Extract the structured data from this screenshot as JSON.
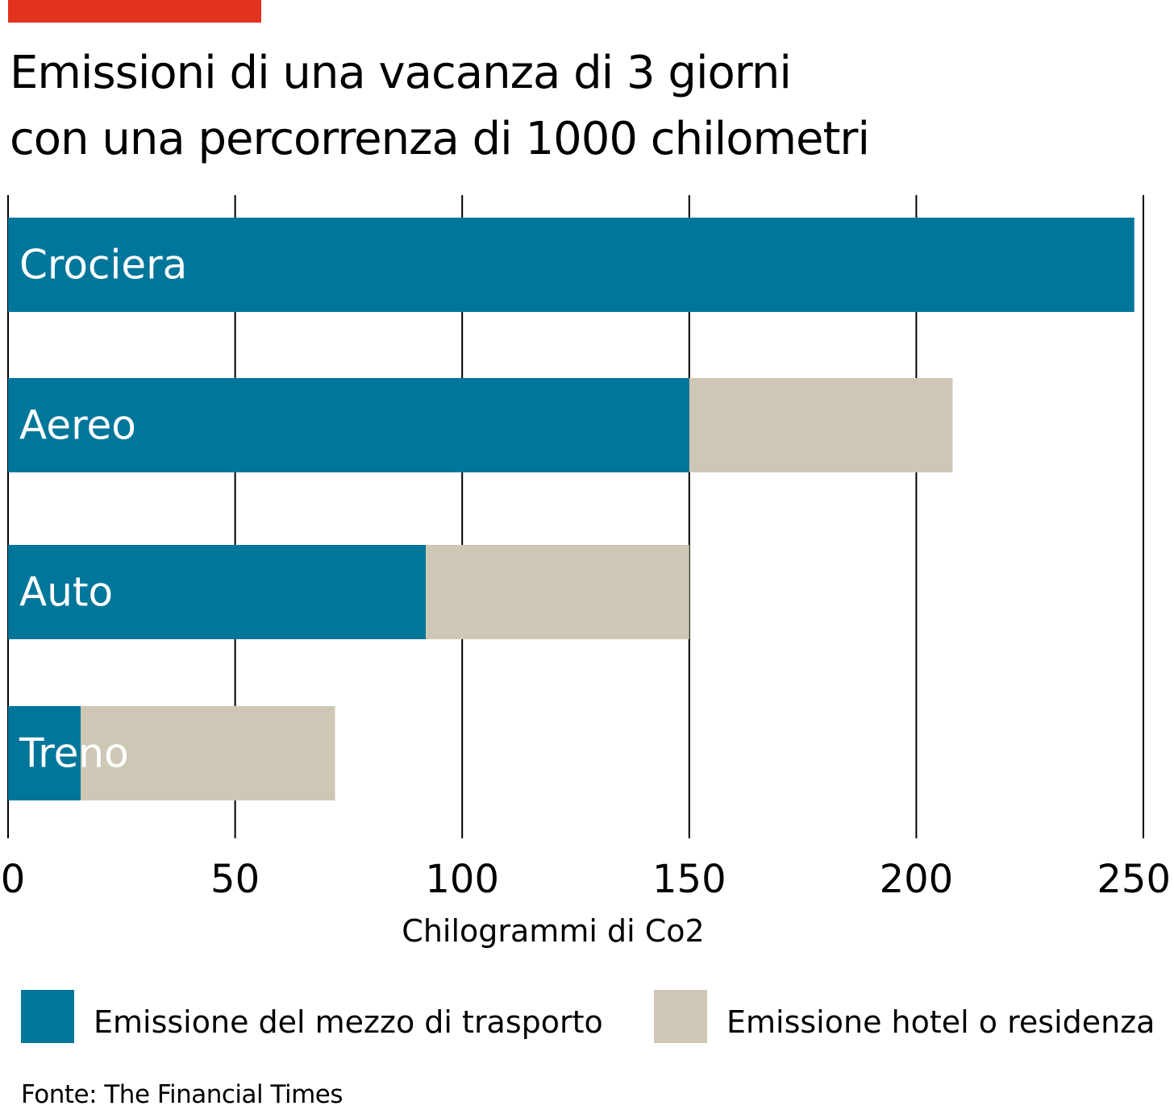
{
  "title": {
    "line1": "Emissioni di una vacanza di 3 giorni",
    "line2": "con una percorrenza di 1000 chilometri"
  },
  "colors": {
    "accent": "#E3321E",
    "transport": "#00769A",
    "hotel": "#CEC7B5",
    "grid": "#000000"
  },
  "chart_data": {
    "type": "bar",
    "orientation": "horizontal",
    "stacked": true,
    "categories": [
      "Crociera",
      "Aereo",
      "Auto",
      "Treno"
    ],
    "series": [
      {
        "name": "Emissione del mezzo di trasporto",
        "values": [
          248,
          150,
          92,
          16
        ]
      },
      {
        "name": "Emissione hotel o residenza",
        "values": [
          0,
          58,
          58,
          56
        ]
      }
    ],
    "xlabel": "Chilogrammi di Co2",
    "xlim": [
      0,
      250
    ],
    "xticks": [
      "0",
      "50",
      "100",
      "150",
      "200",
      "250"
    ],
    "grid": true,
    "legend_position": "bottom"
  },
  "legend": {
    "transport_label": "Emissione del mezzo di trasporto",
    "hotel_label": "Emissione hotel o residenza"
  },
  "source": "Fonte: The Financial Times"
}
